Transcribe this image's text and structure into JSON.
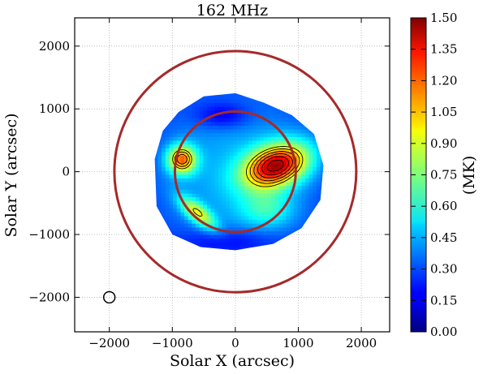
{
  "chart_data": {
    "type": "heatmap",
    "title": "162 MHz",
    "xlabel": "Solar X (arcsec)",
    "ylabel": "Solar Y (arcsec)",
    "xlim": [
      -2550,
      2450
    ],
    "ylim": [
      -2550,
      2450
    ],
    "xticks": [
      -2000,
      -1000,
      0,
      1000,
      2000
    ],
    "yticks": [
      -2000,
      -1000,
      0,
      1000,
      2000
    ],
    "xtick_labels": [
      "−2000",
      "−1000",
      "0",
      "1000",
      "2000"
    ],
    "ytick_labels": [
      "−2000",
      "−1000",
      "0",
      "1000",
      "2000"
    ],
    "grid": true,
    "colorbar": {
      "label": "(MK)",
      "min": 0.0,
      "max": 1.5,
      "ticks": [
        0.0,
        0.15,
        0.3,
        0.45,
        0.6,
        0.75,
        0.9,
        1.05,
        1.2,
        1.35,
        1.5
      ],
      "tick_labels": [
        "0.00",
        "0.15",
        "0.30",
        "0.45",
        "0.60",
        "0.75",
        "0.90",
        "1.05",
        "1.20",
        "1.35",
        "1.50"
      ],
      "colormap": "jet"
    },
    "circles": [
      {
        "name": "optical-disk",
        "cx": 0,
        "cy": 0,
        "r": 960,
        "color": "#a52a2a"
      },
      {
        "name": "outer-circle",
        "cx": 0,
        "cy": 0,
        "r": 1920,
        "color": "#a52a2a"
      },
      {
        "name": "beam",
        "cx": -2000,
        "cy": -2000,
        "r": 90,
        "color": "#000000"
      }
    ],
    "sources": [
      {
        "x": 0,
        "y": 0,
        "sx": 1600,
        "sy": 1600,
        "amp": 0.45
      },
      {
        "x": 650,
        "y": 100,
        "sx": 380,
        "sy": 230,
        "amp": 1.05,
        "rot": 20
      },
      {
        "x": -850,
        "y": 200,
        "sx": 160,
        "sy": 160,
        "amp": 0.8
      },
      {
        "x": -600,
        "y": -650,
        "sx": 250,
        "sy": 100,
        "amp": 0.55,
        "rot": -40
      },
      {
        "x": 500,
        "y": -600,
        "sx": 300,
        "sy": 200,
        "amp": 0.25
      },
      {
        "x": -200,
        "y": 900,
        "sx": 300,
        "sy": 150,
        "amp": -0.2
      },
      {
        "x": -100,
        "y": -1100,
        "sx": 500,
        "sy": 150,
        "amp": -0.15
      }
    ],
    "emission_boundary": [
      [
        -1280,
        200
      ],
      [
        -1150,
        650
      ],
      [
        -900,
        950
      ],
      [
        -500,
        1200
      ],
      [
        0,
        1250
      ],
      [
        450,
        1100
      ],
      [
        900,
        900
      ],
      [
        1250,
        600
      ],
      [
        1400,
        100
      ],
      [
        1350,
        -450
      ],
      [
        1050,
        -900
      ],
      [
        600,
        -1150
      ],
      [
        0,
        -1250
      ],
      [
        -550,
        -1200
      ],
      [
        -1000,
        -1000
      ],
      [
        -1250,
        -550
      ]
    ],
    "contour_levels_MK": [
      0.9,
      1.0,
      1.1,
      1.2,
      1.3,
      1.4
    ]
  }
}
